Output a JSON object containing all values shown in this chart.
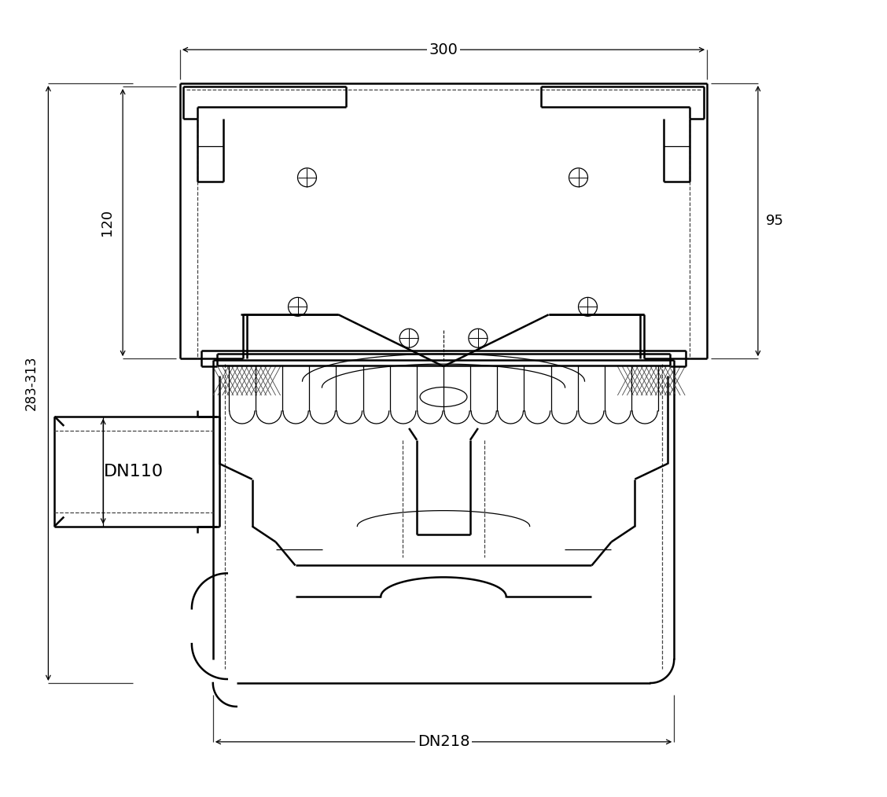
{
  "bg_color": "#ffffff",
  "line_color": "#000000",
  "dim_color": "#000000",
  "dashed_color": "#555555",
  "annotations": {
    "dim_300": "300",
    "dim_95": "95",
    "dim_120": "120",
    "dim_283_313": "283-313",
    "label_dn110": "DN110",
    "label_dn218": "DN218"
  },
  "fig_width": 11.28,
  "fig_height": 10.14
}
